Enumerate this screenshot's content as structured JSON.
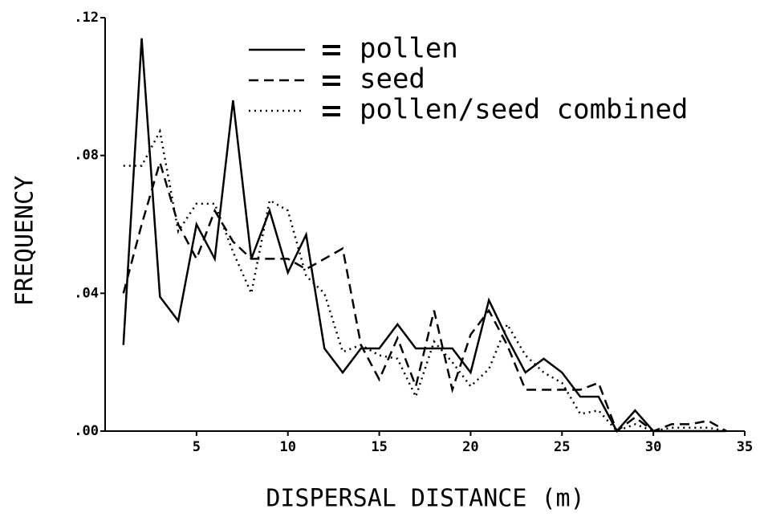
{
  "chart_data": {
    "type": "line",
    "x_label": "DISPERSAL DISTANCE (m)",
    "y_label": "FREQUENCY",
    "x": [
      1,
      2,
      3,
      4,
      5,
      6,
      7,
      8,
      9,
      10,
      11,
      12,
      13,
      14,
      15,
      16,
      17,
      18,
      19,
      20,
      21,
      22,
      23,
      24,
      25,
      26,
      27,
      28,
      29,
      30,
      31,
      32,
      33,
      34
    ],
    "series": [
      {
        "name": "pollen",
        "color": "#000000",
        "line_style": "solid",
        "values": [
          0.025,
          0.114,
          0.039,
          0.032,
          0.06,
          0.05,
          0.096,
          0.05,
          0.064,
          0.046,
          0.057,
          0.024,
          0.017,
          0.024,
          0.024,
          0.031,
          0.024,
          0.024,
          0.024,
          0.017,
          0.038,
          0.027,
          0.017,
          0.021,
          0.017,
          0.01,
          0.01,
          0.0,
          0.006,
          0.0,
          0.0,
          0.0,
          0.0,
          0.0
        ]
      },
      {
        "name": "seed",
        "color": "#000000",
        "line_style": "dashed",
        "values": [
          0.04,
          0.06,
          0.078,
          0.06,
          0.05,
          0.064,
          0.055,
          0.05,
          0.05,
          0.05,
          0.047,
          0.05,
          0.053,
          0.025,
          0.015,
          0.027,
          0.013,
          0.035,
          0.012,
          0.028,
          0.035,
          0.025,
          0.012,
          0.012,
          0.012,
          0.012,
          0.014,
          0.0,
          0.004,
          0.0,
          0.002,
          0.002,
          0.003,
          0.0
        ]
      },
      {
        "name": "pollen/seed combined",
        "color": "#000000",
        "line_style": "dotted",
        "values": [
          0.077,
          0.077,
          0.087,
          0.058,
          0.066,
          0.066,
          0.052,
          0.04,
          0.067,
          0.064,
          0.045,
          0.04,
          0.023,
          0.025,
          0.022,
          0.021,
          0.01,
          0.026,
          0.02,
          0.013,
          0.018,
          0.031,
          0.022,
          0.017,
          0.014,
          0.005,
          0.006,
          0.0,
          0.002,
          0.0,
          0.001,
          0.001,
          0.001,
          0.0
        ]
      }
    ],
    "xlim": [
      0,
      35
    ],
    "xticks": [
      5,
      10,
      15,
      20,
      25,
      30,
      35
    ],
    "ylim": [
      0,
      0.12
    ],
    "yticks": [
      {
        "value": 0,
        "label": ".00"
      },
      {
        "value": 0.04,
        "label": ".04"
      },
      {
        "value": 0.08,
        "label": ".08"
      },
      {
        "value": 0.12,
        "label": ".12"
      }
    ],
    "legend": "top-right"
  }
}
